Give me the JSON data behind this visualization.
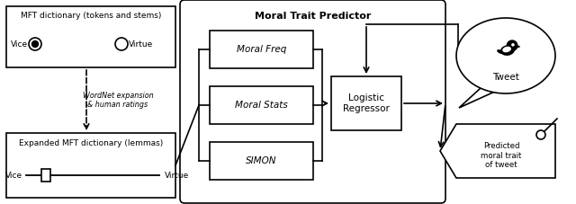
{
  "bg_color": "#ffffff",
  "title": "Moral Trait Predictor",
  "box1_title": "MFT dictionary (tokens and stems)",
  "box1_vice": "Vice",
  "box1_virtue": "Virtue",
  "box2_title": "Expanded MFT dictionary (lemmas)",
  "box2_vice": "Vice",
  "box2_virtue": "Virtue",
  "arrow_label": "WordNet expansion\n& human ratings",
  "moral_freq": "Moral Freq",
  "moral_stats": "Moral Stats",
  "simon": "SIMON",
  "logistic": "Logistic\nRegressor",
  "tweet_label": "Tweet",
  "predicted_label": "Predicted\nmoral trait\nof tweet",
  "lw": 1.2
}
